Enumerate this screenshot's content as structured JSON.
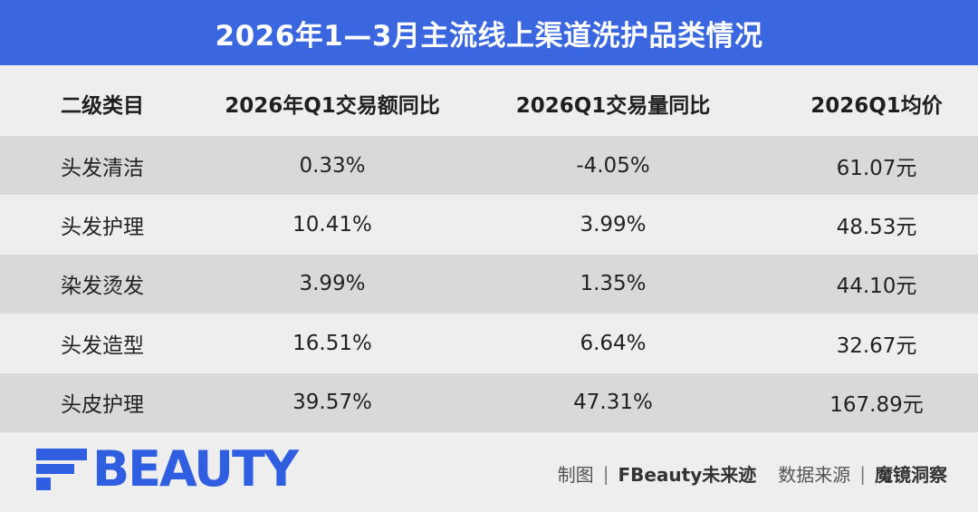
{
  "title": "2026年1—3月主流线上渠道洗护品类情况",
  "chart_data": {
    "type": "table",
    "columns": [
      "二级类目",
      "2026年Q1交易额同比",
      "2026Q1交易量同比",
      "2026Q1均价"
    ],
    "rows": [
      [
        "头发清洁",
        "0.33%",
        "-4.05%",
        "61.07元"
      ],
      [
        "头发护理",
        "10.41%",
        "3.99%",
        "48.53元"
      ],
      [
        "染发烫发",
        "3.99%",
        "1.35%",
        "44.10元"
      ],
      [
        "头发造型",
        "16.51%",
        "6.64%",
        "32.67元"
      ],
      [
        "头皮护理",
        "39.57%",
        "47.31%",
        "167.89元"
      ]
    ]
  },
  "footer": {
    "logo_text": "BEAUTY",
    "made_by_label": "制图",
    "made_by": "FBeauty未来迹",
    "source_label": "数据来源",
    "source": "魔镜洞察",
    "separator": "|"
  },
  "colors": {
    "title_bg": "#3a66e0",
    "brand_blue": "#2f5fe0",
    "page_bg": "#eeeeee",
    "row_shade": "#d9d9d9"
  }
}
